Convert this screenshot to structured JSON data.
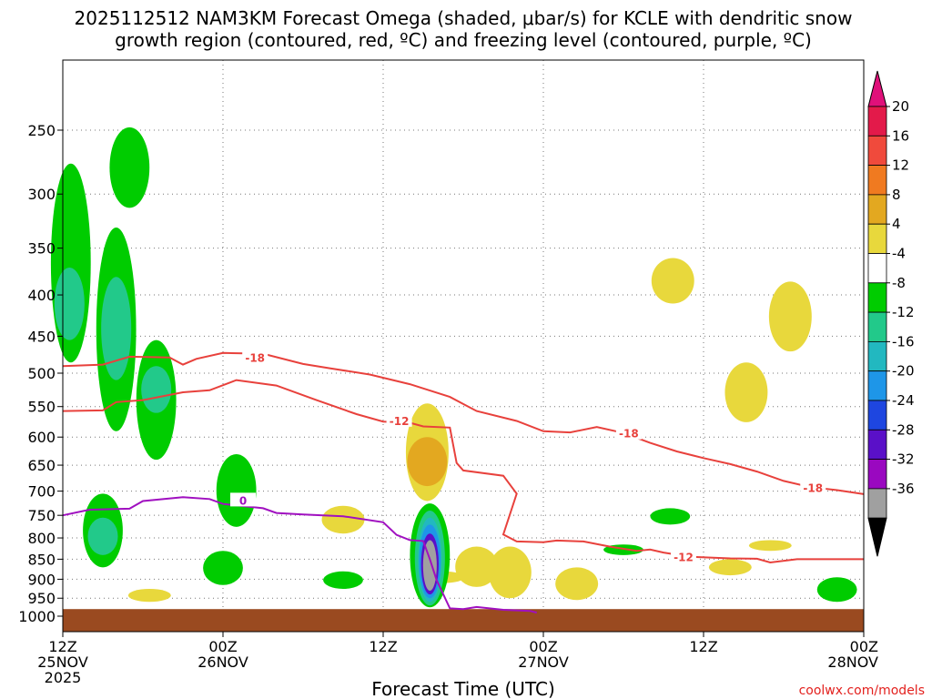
{
  "chart_data": {
    "type": "time-height cross section",
    "title_line1": "2025112512 NAM3KM Forecast Omega (shaded, μbar/s) for KCLE with dendritic snow",
    "title_line2": "growth region (contoured, red, ºC) and freezing level (contoured, purple, ºC)",
    "xlabel": "Forecast Time (UTC)",
    "credit": "coolwx.com/models",
    "x_range_hours": [
      0,
      60
    ],
    "x_ticks": [
      {
        "hour": 0,
        "line1": "12Z",
        "line2": "25NOV",
        "line3": "2025"
      },
      {
        "hour": 12,
        "line1": "00Z",
        "line2": "26NOV",
        "line3": ""
      },
      {
        "hour": 24,
        "line1": "12Z",
        "line2": "",
        "line3": ""
      },
      {
        "hour": 36,
        "line1": "00Z",
        "line2": "27NOV",
        "line3": ""
      },
      {
        "hour": 48,
        "line1": "12Z",
        "line2": "",
        "line3": ""
      },
      {
        "hour": 60,
        "line1": "00Z",
        "line2": "28NOV",
        "line3": ""
      }
    ],
    "y_ticks_hpa": [
      250,
      300,
      350,
      400,
      450,
      500,
      550,
      600,
      650,
      700,
      750,
      800,
      850,
      900,
      950,
      1000
    ],
    "y_range_hpa": [
      200,
      1000
    ],
    "ground_pressure_hpa": 980,
    "colorbar": {
      "labels": [
        "20",
        "16",
        "12",
        "8",
        "4",
        "-4",
        "-8",
        "-12",
        "-16",
        "-20",
        "-24",
        "-28",
        "-32",
        "-36"
      ],
      "colors": [
        "#e31a4a",
        "#f04a3c",
        "#f07a20",
        "#e3a820",
        "#e8d83c",
        "#ffffff",
        "#00cc00",
        "#22c98a",
        "#22b8c0",
        "#1e96e8",
        "#1e46e0",
        "#5a10c8",
        "#9a08c0",
        "#a0a0a0",
        "#000000"
      ],
      "top_arrow_color": "#e0107a",
      "bottom_arrow_color": "#000000"
    },
    "contour_labels": {
      "dgz_upper": "-18",
      "dgz_lower": "-12",
      "freezing": "0"
    },
    "dgz_minus18_line": [
      [
        0,
        490
      ],
      [
        3,
        488
      ],
      [
        5,
        477
      ],
      [
        8,
        478
      ],
      [
        9,
        488
      ],
      [
        10,
        480
      ],
      [
        12,
        472
      ],
      [
        15,
        473
      ],
      [
        18,
        487
      ],
      [
        20,
        493
      ],
      [
        23,
        502
      ],
      [
        26,
        516
      ],
      [
        29,
        535
      ],
      [
        31,
        557
      ],
      [
        34,
        573
      ],
      [
        36,
        590
      ],
      [
        38,
        592
      ],
      [
        40,
        583
      ],
      [
        42,
        593
      ],
      [
        44,
        610
      ],
      [
        46,
        625
      ],
      [
        48,
        637
      ],
      [
        50,
        648
      ],
      [
        52,
        662
      ],
      [
        54,
        680
      ],
      [
        56,
        692
      ],
      [
        58,
        698
      ],
      [
        60,
        706
      ]
    ],
    "dgz_minus12_line": [
      [
        0,
        557
      ],
      [
        3,
        556
      ],
      [
        4,
        543
      ],
      [
        6,
        540
      ],
      [
        9,
        528
      ],
      [
        11,
        525
      ],
      [
        13,
        510
      ],
      [
        16,
        518
      ],
      [
        19,
        540
      ],
      [
        22,
        562
      ],
      [
        24,
        574
      ],
      [
        26,
        576
      ],
      [
        27,
        582
      ],
      [
        29,
        584
      ],
      [
        29.5,
        646
      ],
      [
        30,
        660
      ],
      [
        33,
        670
      ],
      [
        34,
        705
      ],
      [
        33,
        792
      ],
      [
        34,
        808
      ],
      [
        36,
        810
      ],
      [
        37,
        806
      ],
      [
        39,
        808
      ],
      [
        41,
        820
      ],
      [
        43,
        830
      ],
      [
        44,
        827
      ],
      [
        45,
        834
      ],
      [
        47,
        844
      ],
      [
        50,
        848
      ],
      [
        52,
        849
      ],
      [
        53,
        858
      ],
      [
        55,
        850
      ],
      [
        58,
        850
      ],
      [
        60,
        850
      ]
    ],
    "freezing_line": [
      [
        0,
        750
      ],
      [
        2,
        738
      ],
      [
        5,
        736
      ],
      [
        6,
        720
      ],
      [
        9,
        712
      ],
      [
        11,
        716
      ],
      [
        12,
        726
      ],
      [
        15,
        735
      ],
      [
        16,
        745
      ],
      [
        18,
        748
      ],
      [
        21,
        752
      ],
      [
        24,
        765
      ],
      [
        25,
        793
      ],
      [
        26,
        805
      ],
      [
        27,
        807
      ],
      [
        27.5,
        850
      ],
      [
        28,
        902
      ],
      [
        29,
        978
      ],
      [
        30,
        980
      ],
      [
        31,
        974
      ],
      [
        33,
        982
      ],
      [
        35,
        985
      ],
      [
        35.5,
        990
      ]
    ],
    "omega_cells": [
      {
        "value": -8,
        "center_hour": 0.6,
        "top_hpa": 275,
        "bottom_hpa": 485
      },
      {
        "value": -12,
        "center_hour": 0.5,
        "top_hpa": 370,
        "bottom_hpa": 455
      },
      {
        "value": -8,
        "center_hour": 5.0,
        "top_hpa": 248,
        "bottom_hpa": 312
      },
      {
        "value": -8,
        "center_hour": 4.0,
        "top_hpa": 330,
        "bottom_hpa": 590
      },
      {
        "value": -12,
        "center_hour": 4.0,
        "top_hpa": 380,
        "bottom_hpa": 510
      },
      {
        "value": -8,
        "center_hour": 7.0,
        "top_hpa": 455,
        "bottom_hpa": 640
      },
      {
        "value": -12,
        "center_hour": 7.0,
        "top_hpa": 490,
        "bottom_hpa": 560
      },
      {
        "value": -8,
        "center_hour": 3.0,
        "top_hpa": 705,
        "bottom_hpa": 870
      },
      {
        "value": -12,
        "center_hour": 3.0,
        "top_hpa": 755,
        "bottom_hpa": 840
      },
      {
        "value": -8,
        "center_hour": 13.0,
        "top_hpa": 630,
        "bottom_hpa": 775
      },
      {
        "value": -8,
        "center_hour": 12.0,
        "top_hpa": 830,
        "bottom_hpa": 915
      },
      {
        "value": -8,
        "center_hour": 21.0,
        "top_hpa": 880,
        "bottom_hpa": 925
      },
      {
        "value": -8,
        "center_hour": 27.5,
        "top_hpa": 725,
        "bottom_hpa": 975
      },
      {
        "value": -12,
        "center_hour": 27.5,
        "top_hpa": 740,
        "bottom_hpa": 970
      },
      {
        "value": -16,
        "center_hour": 27.5,
        "top_hpa": 755,
        "bottom_hpa": 960
      },
      {
        "value": -20,
        "center_hour": 27.5,
        "top_hpa": 770,
        "bottom_hpa": 950
      },
      {
        "value": -28,
        "center_hour": 27.5,
        "top_hpa": 790,
        "bottom_hpa": 940
      },
      {
        "value": -36,
        "center_hour": 27.5,
        "top_hpa": 805,
        "bottom_hpa": 930
      },
      {
        "value": -8,
        "center_hour": 45.5,
        "top_hpa": 735,
        "bottom_hpa": 770
      },
      {
        "value": -8,
        "center_hour": 42.0,
        "top_hpa": 815,
        "bottom_hpa": 840
      },
      {
        "value": -8,
        "center_hour": 58.0,
        "top_hpa": 895,
        "bottom_hpa": 960
      },
      {
        "value": 4,
        "center_hour": 27.3,
        "top_hpa": 545,
        "bottom_hpa": 720
      },
      {
        "value": 8,
        "center_hour": 27.3,
        "top_hpa": 600,
        "bottom_hpa": 690
      },
      {
        "value": 4,
        "center_hour": 6.5,
        "top_hpa": 925,
        "bottom_hpa": 960
      },
      {
        "value": 4,
        "center_hour": 21.0,
        "top_hpa": 730,
        "bottom_hpa": 790
      },
      {
        "value": 4,
        "center_hour": 28.5,
        "top_hpa": 880,
        "bottom_hpa": 910
      },
      {
        "value": 4,
        "center_hour": 31.0,
        "top_hpa": 820,
        "bottom_hpa": 920
      },
      {
        "value": 4,
        "center_hour": 33.5,
        "top_hpa": 820,
        "bottom_hpa": 950
      },
      {
        "value": 4,
        "center_hour": 38.5,
        "top_hpa": 870,
        "bottom_hpa": 955
      },
      {
        "value": 4,
        "center_hour": 45.7,
        "top_hpa": 360,
        "bottom_hpa": 410
      },
      {
        "value": 4,
        "center_hour": 50.0,
        "top_hpa": 850,
        "bottom_hpa": 890
      },
      {
        "value": 4,
        "center_hour": 51.2,
        "top_hpa": 485,
        "bottom_hpa": 575
      },
      {
        "value": 4,
        "center_hour": 54.5,
        "top_hpa": 385,
        "bottom_hpa": 470
      },
      {
        "value": 4,
        "center_hour": 53.0,
        "top_hpa": 805,
        "bottom_hpa": 830
      }
    ]
  }
}
